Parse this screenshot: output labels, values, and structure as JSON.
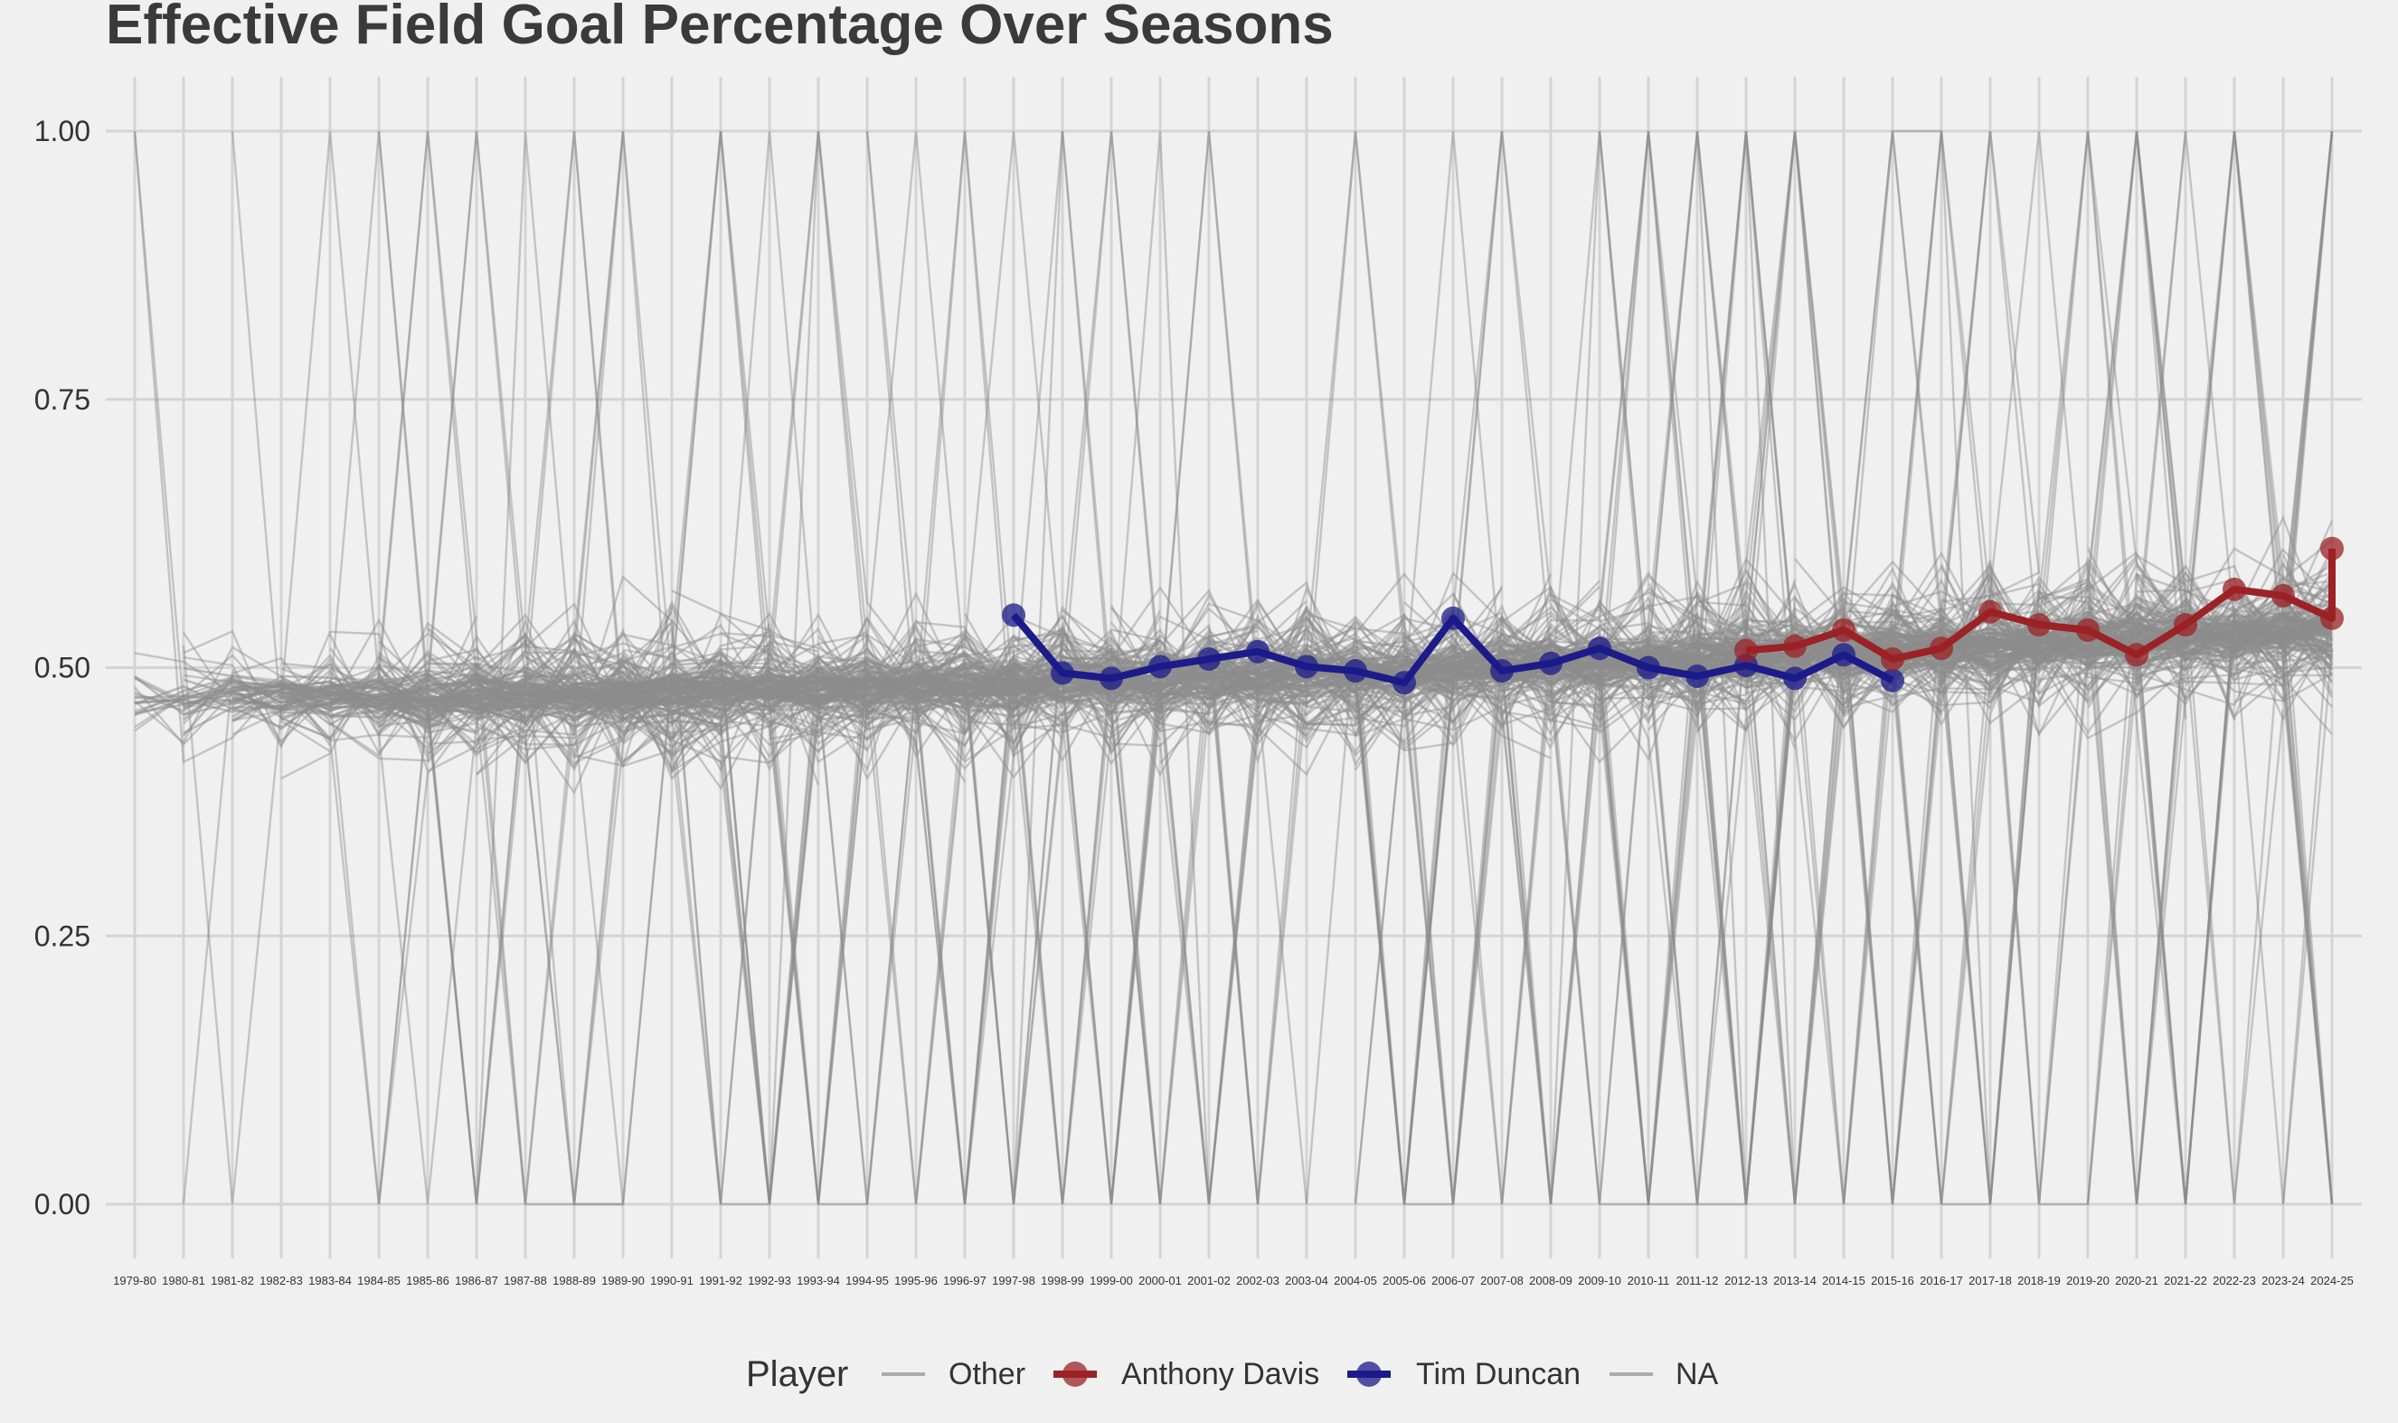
{
  "chart_data": {
    "type": "line",
    "title": "Effective Field Goal Percentage Over Seasons",
    "xlabel": "",
    "ylabel": "",
    "categories": [
      "1979-80",
      "1980-81",
      "1981-82",
      "1982-83",
      "1983-84",
      "1984-85",
      "1985-86",
      "1986-87",
      "1987-88",
      "1988-89",
      "1989-90",
      "1990-91",
      "1991-92",
      "1992-93",
      "1993-94",
      "1994-95",
      "1995-96",
      "1996-97",
      "1997-98",
      "1998-99",
      "1999-00",
      "2000-01",
      "2001-02",
      "2002-03",
      "2003-04",
      "2004-05",
      "2005-06",
      "2006-07",
      "2007-08",
      "2008-09",
      "2009-10",
      "2010-11",
      "2011-12",
      "2012-13",
      "2013-14",
      "2014-15",
      "2015-16",
      "2016-17",
      "2017-18",
      "2018-19",
      "2019-20",
      "2020-21",
      "2021-22",
      "2022-23",
      "2023-24",
      "2024-25"
    ],
    "ylim": [
      0,
      1
    ],
    "yticks": [
      0.0,
      0.25,
      0.5,
      0.75,
      1.0
    ],
    "ytick_labels": [
      "0.00",
      "0.25",
      "0.50",
      "0.75",
      "1.00"
    ],
    "grid": true,
    "legend": {
      "title": "Player",
      "position": "bottom",
      "entries": [
        "Other",
        "Anthony Davis",
        "Tim Duncan",
        "NA"
      ]
    },
    "series": [
      {
        "name": "Tim Duncan",
        "color": "#1b1b8a",
        "x": [
          "1997-98",
          "1998-99",
          "1999-00",
          "2000-01",
          "2001-02",
          "2002-03",
          "2003-04",
          "2004-05",
          "2005-06",
          "2006-07",
          "2007-08",
          "2008-09",
          "2009-10",
          "2010-11",
          "2011-12",
          "2012-13",
          "2013-14",
          "2014-15",
          "2015-16"
        ],
        "values": [
          0.549,
          0.495,
          0.49,
          0.501,
          0.508,
          0.515,
          0.501,
          0.497,
          0.486,
          0.546,
          0.497,
          0.504,
          0.518,
          0.5,
          0.492,
          0.502,
          0.49,
          0.512,
          0.488
        ]
      },
      {
        "name": "Anthony Davis",
        "color": "#9b2226",
        "x": [
          "2012-13",
          "2013-14",
          "2014-15",
          "2015-16",
          "2016-17",
          "2017-18",
          "2018-19",
          "2019-20",
          "2020-21",
          "2021-22",
          "2022-23",
          "2023-24",
          "2024-25",
          "2024-25"
        ],
        "values": [
          0.516,
          0.52,
          0.535,
          0.508,
          0.518,
          0.552,
          0.54,
          0.535,
          0.512,
          0.54,
          0.573,
          0.567,
          0.546,
          0.611
        ]
      }
    ],
    "colors": {
      "other": "#8c8c8c",
      "grid": "#d4d4d4",
      "background": "#f0f0f0"
    }
  }
}
